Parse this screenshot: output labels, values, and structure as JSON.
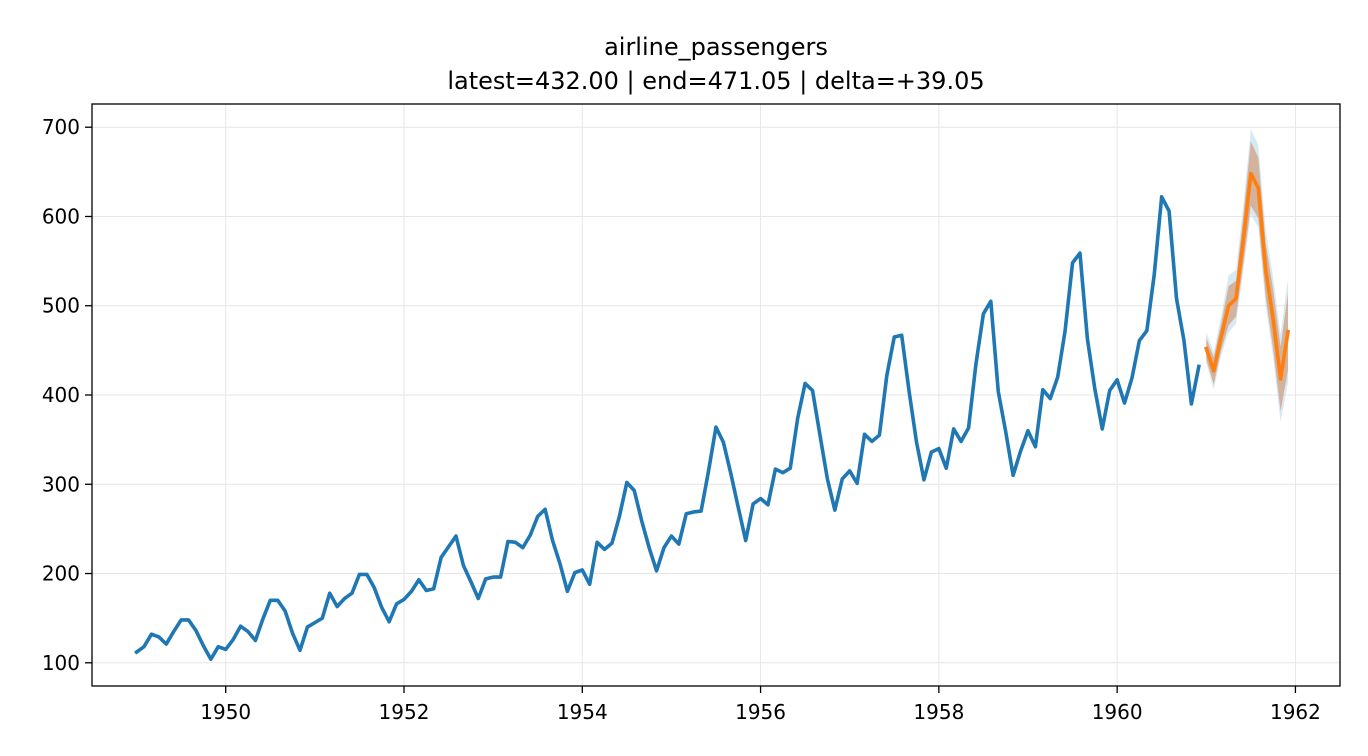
{
  "chart_data": {
    "type": "line",
    "title": "airline_passengers",
    "subtitle": "latest=432.00 | end=471.05 | delta=+39.05",
    "xlabel": "",
    "ylabel": "",
    "xlim": [
      1948.5,
      1962.5
    ],
    "ylim": [
      74,
      726
    ],
    "x_ticks": [
      1950,
      1952,
      1954,
      1956,
      1958,
      1960,
      1962
    ],
    "x_tick_labels": [
      "1950",
      "1952",
      "1954",
      "1956",
      "1958",
      "1960",
      "1962"
    ],
    "y_ticks": [
      100,
      200,
      300,
      400,
      500,
      600,
      700
    ],
    "y_tick_labels": [
      "100",
      "200",
      "300",
      "400",
      "500",
      "600",
      "700"
    ],
    "grid": true,
    "series": [
      {
        "color": "#1f77b4",
        "x_start": 1949.0,
        "x_step": 0.08333,
        "values": [
          112,
          118,
          132,
          129,
          121,
          135,
          148,
          148,
          136,
          119,
          104,
          118,
          115,
          126,
          141,
          135,
          125,
          149,
          170,
          170,
          158,
          133,
          114,
          140,
          145,
          150,
          178,
          163,
          172,
          178,
          199,
          199,
          184,
          162,
          146,
          166,
          171,
          180,
          193,
          181,
          183,
          218,
          230,
          242,
          209,
          191,
          172,
          194,
          196,
          196,
          236,
          235,
          229,
          243,
          264,
          272,
          237,
          211,
          180,
          201,
          204,
          188,
          235,
          227,
          234,
          264,
          302,
          293,
          259,
          229,
          203,
          229,
          242,
          233,
          267,
          269,
          270,
          315,
          364,
          347,
          312,
          274,
          237,
          278,
          284,
          277,
          317,
          313,
          318,
          374,
          413,
          405,
          355,
          306,
          271,
          306,
          315,
          301,
          356,
          348,
          355,
          422,
          465,
          467,
          404,
          347,
          305,
          336,
          340,
          318,
          362,
          348,
          363,
          435,
          491,
          505,
          404,
          359,
          310,
          337,
          360,
          342,
          406,
          396,
          420,
          472,
          548,
          559,
          463,
          407,
          362,
          405,
          417,
          391,
          419,
          461,
          472,
          535,
          622,
          606,
          508,
          461,
          390,
          432
        ]
      },
      {
        "color": "#ff7f0e",
        "x_start": 1961.0,
        "x_step": 0.08333,
        "values": [
          452,
          427,
          465,
          500,
          508,
          575,
          648,
          632,
          540,
          485,
          418,
          471.05
        ],
        "band_inner": {
          "color": "#d2a080",
          "lower": [
            440,
            412,
            450,
            478,
            488,
            548,
            612,
            598,
            510,
            452,
            382,
            428
          ],
          "upper": [
            464,
            442,
            480,
            522,
            528,
            602,
            684,
            666,
            570,
            518,
            454,
            514
          ]
        },
        "band_outer": {
          "color": "#a6cfe3",
          "lower": [
            436,
            406,
            444,
            470,
            480,
            540,
            602,
            588,
            500,
            442,
            370,
            414
          ],
          "upper": [
            470,
            448,
            488,
            534,
            540,
            614,
            698,
            680,
            584,
            532,
            468,
            530
          ]
        }
      }
    ]
  }
}
